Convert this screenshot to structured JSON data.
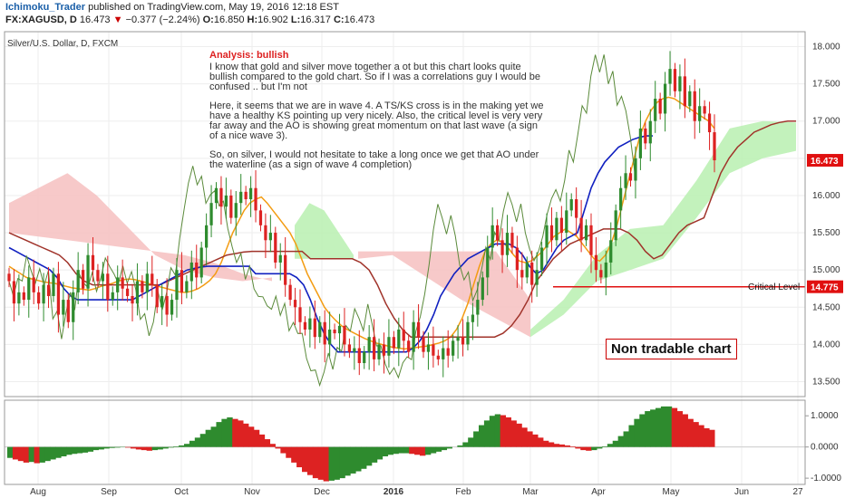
{
  "header": {
    "author": "Ichimoku_Trader",
    "published": "published on TradingView.com, May 19, 2016 12:18 EST",
    "symbol": "FX:XAGUSD, D",
    "last": "16.473",
    "change_arrow": "▼",
    "change": "−0.377 (−2.24%)",
    "o_label": "O:",
    "o": "16.850",
    "h_label": "H:",
    "h": "16.902",
    "l_label": "L:",
    "l": "16.317",
    "c_label": "C:",
    "c": "16.473"
  },
  "chart_title": "Silver/U.S. Dollar, D, FXCM",
  "analysis": {
    "title": "Analysis: bullish",
    "p1": "I know that gold and silver move together a ot but this chart looks quite bullish compared to the gold chart. So if I was a correlations guy I would be confused .. but I'm not",
    "p2": "Here, it seems that we are in wave 4. A TS/KS cross is in the making yet we have a healthy KS pointing up very nicely. Also, the critical level is very very far away and the AO is showing great momentum on that last wave (a sign of a nice wave 3).",
    "p3": "So, on silver, I would not hesitate to take a long once we get that AO under the waterline (as a sign of wave 4 completion)"
  },
  "non_tradable": "Non tradable chart",
  "critical_level_label": "Critical Level",
  "colors": {
    "up": "#2e8b2e",
    "down": "#d22",
    "tenkan": "#f39c12",
    "kijun": "#1020c0",
    "senkou_b": "#a0332a",
    "chikou": "#5a8a3a",
    "cloud_bull": "#b9f0b0",
    "cloud_bear": "#f6c0c0",
    "critical": "#e01010",
    "last_price": "#e01010"
  },
  "chart_data": [
    {
      "type": "candlestick",
      "title": "Silver/U.S. Dollar, D, FXCM",
      "x_ticks": [
        "Aug",
        "Sep",
        "Oct",
        "Nov",
        "Dec",
        "2016",
        "Feb",
        "Mar",
        "Apr",
        "May",
        "Jun",
        "27"
      ],
      "y_ticks": [
        13.5,
        14.0,
        14.5,
        15.0,
        15.5,
        16.0,
        16.5,
        17.0,
        17.5,
        18.0
      ],
      "ylim": [
        13.3,
        18.2
      ],
      "price_markers": [
        {
          "label": "16.473",
          "value": 16.473
        },
        {
          "label": "14.775",
          "value": 14.775
        }
      ],
      "critical_level": 14.775,
      "close": [
        14.85,
        14.55,
        14.7,
        14.6,
        14.9,
        14.7,
        14.55,
        14.8,
        14.65,
        14.95,
        14.4,
        14.6,
        14.3,
        14.7,
        15.0,
        14.75,
        15.2,
        15.0,
        14.85,
        14.95,
        14.6,
        14.7,
        14.9,
        14.75,
        14.65,
        14.55,
        14.85,
        14.7,
        14.95,
        14.8,
        14.5,
        14.65,
        14.4,
        14.6,
        15.0,
        14.7,
        14.85,
        15.1,
        14.9,
        15.3,
        15.6,
        15.9,
        16.1,
        15.85,
        16.0,
        15.7,
        15.9,
        16.05,
        15.95,
        16.1,
        15.8,
        15.6,
        15.4,
        15.5,
        15.1,
        15.2,
        14.8,
        14.6,
        14.5,
        14.3,
        14.2,
        14.35,
        14.1,
        14.3,
        14.0,
        14.2,
        14.15,
        14.25,
        14.0,
        13.9,
        13.95,
        13.75,
        13.9,
        14.1,
        13.8,
        14.0,
        13.85,
        14.1,
        13.95,
        14.2,
        14.05,
        13.9,
        14.3,
        14.1,
        13.9,
        14.0,
        13.85,
        13.8,
        13.95,
        13.85,
        14.05,
        14.1,
        14.0,
        14.3,
        14.4,
        14.6,
        14.9,
        15.3,
        15.6,
        15.4,
        15.2,
        15.5,
        15.3,
        15.0,
        14.9,
        15.1,
        14.8,
        15.0,
        15.3,
        15.6,
        15.4,
        15.7,
        15.5,
        15.8,
        15.95,
        15.7,
        15.4,
        15.6,
        15.2,
        15.0,
        14.9,
        15.1,
        15.4,
        15.8,
        16.1,
        16.3,
        16.2,
        16.5,
        16.9,
        16.7,
        17.0,
        17.3,
        17.1,
        17.5,
        17.7,
        17.4,
        17.6,
        17.2,
        17.4,
        17.0,
        17.2,
        17.1,
        16.85,
        16.473
      ],
      "tenkan": [
        15.05,
        15.0,
        14.95,
        14.9,
        14.88,
        14.86,
        14.84,
        14.83,
        14.82,
        14.8,
        14.78,
        14.76,
        14.75,
        14.74,
        14.73,
        14.75,
        14.78,
        14.8,
        14.82,
        14.85,
        14.87,
        14.88,
        14.87,
        14.85,
        14.83,
        14.8,
        14.78,
        14.76,
        14.74,
        14.72,
        14.7,
        14.7,
        14.72,
        14.75,
        14.8,
        14.86,
        14.95,
        15.1,
        15.3,
        15.5,
        15.65,
        15.8,
        15.9,
        15.95,
        15.98,
        15.9,
        15.8,
        15.7,
        15.6,
        15.5,
        15.35,
        15.15,
        14.95,
        14.8,
        14.65,
        14.5,
        14.4,
        14.32,
        14.25,
        14.2,
        14.16,
        14.12,
        14.08,
        14.05,
        14.02,
        14.0,
        13.98,
        13.96,
        13.95,
        13.94,
        13.95,
        13.96,
        13.97,
        13.98,
        14.0,
        14.02,
        14.05,
        14.1,
        14.2,
        14.35,
        14.55,
        14.8,
        15.05,
        15.25,
        15.35,
        15.4,
        15.38,
        15.3,
        15.2,
        15.12,
        15.1,
        15.12,
        15.18,
        15.25,
        15.35,
        15.45,
        15.5,
        15.55,
        15.5,
        15.45,
        15.35,
        15.25,
        15.15,
        15.12,
        15.2,
        15.35,
        15.6,
        15.9,
        16.2,
        16.5,
        16.8,
        17.0,
        17.15,
        17.25,
        17.3,
        17.32,
        17.3,
        17.25,
        17.2,
        17.15,
        17.1,
        17.05,
        17.0,
        16.9
      ],
      "kijun": [
        15.5,
        15.45,
        15.4,
        15.35,
        15.3,
        15.25,
        15.2,
        15.1,
        14.95,
        14.85,
        14.8,
        14.8,
        14.8,
        14.8,
        14.8,
        14.8,
        14.8,
        14.8,
        14.8,
        14.85,
        14.9,
        14.95,
        15.0,
        15.05,
        15.1,
        15.15,
        15.2,
        15.22,
        15.24,
        15.25,
        15.25,
        15.25,
        15.25,
        15.25,
        15.25,
        15.25,
        15.15,
        15.15,
        15.15,
        15.15,
        15.15,
        15.15,
        15.1,
        15.0,
        14.8,
        14.55,
        14.35,
        14.2,
        14.1,
        14.1,
        14.1,
        14.1,
        14.1,
        14.1,
        14.1,
        14.1,
        14.1,
        14.1,
        14.1,
        14.15,
        14.25,
        14.4,
        14.6,
        14.85,
        15.0,
        15.15,
        15.25,
        15.35,
        15.4,
        15.45,
        15.5,
        15.55,
        15.55,
        15.55,
        15.5,
        15.4,
        15.25,
        15.15,
        15.2,
        15.35,
        15.5,
        15.6,
        15.65,
        15.7,
        16.0,
        16.3,
        16.5,
        16.65,
        16.75,
        16.85,
        16.9,
        16.95,
        16.98,
        17.0,
        17.0
      ]
    },
    {
      "type": "bar",
      "title": "Awesome Oscillator",
      "y_ticks": [
        1.0,
        0.0,
        -1.0
      ],
      "y_tick_labels": [
        "1.0000",
        "0.0000",
        "-1.0000"
      ],
      "ylim": [
        -1.2,
        1.5
      ],
      "values": [
        -0.35,
        -0.4,
        -0.45,
        -0.5,
        -0.48,
        -0.52,
        -0.5,
        -0.45,
        -0.4,
        -0.35,
        -0.3,
        -0.25,
        -0.22,
        -0.2,
        -0.18,
        -0.15,
        -0.1,
        -0.08,
        -0.05,
        -0.03,
        -0.02,
        -0.01,
        -0.02,
        -0.05,
        -0.08,
        -0.1,
        -0.12,
        -0.1,
        -0.08,
        -0.05,
        -0.02,
        0.02,
        0.05,
        0.1,
        0.2,
        0.3,
        0.42,
        0.55,
        0.65,
        0.8,
        0.9,
        0.95,
        0.9,
        0.85,
        0.75,
        0.65,
        0.55,
        0.4,
        0.25,
        0.1,
        -0.05,
        -0.2,
        -0.35,
        -0.5,
        -0.65,
        -0.8,
        -0.9,
        -1.0,
        -1.05,
        -1.1,
        -1.08,
        -1.05,
        -1.0,
        -0.92,
        -0.85,
        -0.78,
        -0.7,
        -0.6,
        -0.5,
        -0.4,
        -0.3,
        -0.25,
        -0.22,
        -0.2,
        -0.2,
        -0.22,
        -0.25,
        -0.28,
        -0.25,
        -0.2,
        -0.15,
        -0.1,
        -0.05,
        0.0,
        0.05,
        0.15,
        0.3,
        0.5,
        0.7,
        0.85,
        1.0,
        1.05,
        1.02,
        0.95,
        0.85,
        0.75,
        0.62,
        0.5,
        0.4,
        0.3,
        0.2,
        0.15,
        0.1,
        0.08,
        0.05,
        0.02,
        -0.05,
        -0.1,
        -0.12,
        -0.1,
        -0.05,
        0.02,
        0.1,
        0.2,
        0.35,
        0.5,
        0.7,
        0.9,
        1.05,
        1.15,
        1.2,
        1.25,
        1.3,
        1.3,
        1.25,
        1.15,
        1.05,
        0.9,
        0.8,
        0.7,
        0.6,
        0.55
      ]
    }
  ]
}
